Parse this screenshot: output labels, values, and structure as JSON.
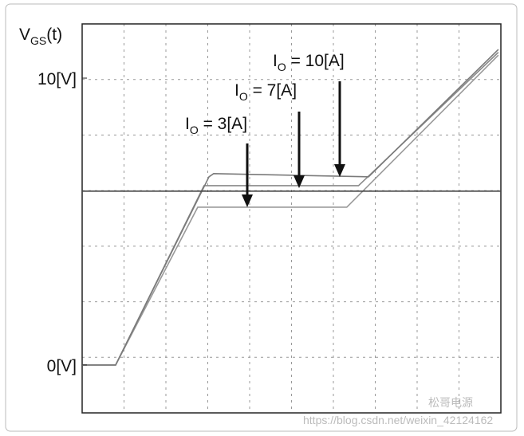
{
  "chart_data": {
    "type": "line",
    "y_label": {
      "main": "V",
      "sub": "GS",
      "rest": "(t)"
    },
    "xlim": [
      0,
      10
    ],
    "ylim": [
      -1.67,
      11.89
    ],
    "yticks": [
      {
        "value": 0,
        "label": "0[V]"
      },
      {
        "value": 10,
        "label": "10[V]"
      }
    ],
    "annotations": [
      {
        "main": "I",
        "sub": "O",
        "rest": " = 3[A]"
      },
      {
        "main": "I",
        "sub": "O",
        "rest": " = 7[A]"
      },
      {
        "main": "I",
        "sub": "O",
        "rest": " = 10[A]"
      }
    ],
    "series": [
      {
        "color": "#9a9a9a",
        "x": [
          0,
          0.8,
          2.76,
          6.32,
          9.94
        ],
        "values": [
          0,
          0,
          5.5,
          5.5,
          10.8
        ]
      },
      {
        "color": "#8a8a8a",
        "x": [
          0,
          0.8,
          2.91,
          6.6,
          9.94
        ],
        "values": [
          0,
          0,
          6.25,
          6.25,
          10.9
        ]
      },
      {
        "color": "#7a7a7a",
        "x": [
          0,
          0.8,
          3.03,
          3.14,
          6.84,
          9.94
        ],
        "values": [
          0,
          0,
          6.56,
          6.67,
          6.56,
          11
        ]
      },
      {
        "color": "#444444",
        "x": [
          0,
          10
        ],
        "values": [
          6.06,
          6.06
        ]
      }
    ],
    "watermark": [
      "松哥电源",
      "https://blog.csdn.net/weixin_42124162"
    ]
  }
}
